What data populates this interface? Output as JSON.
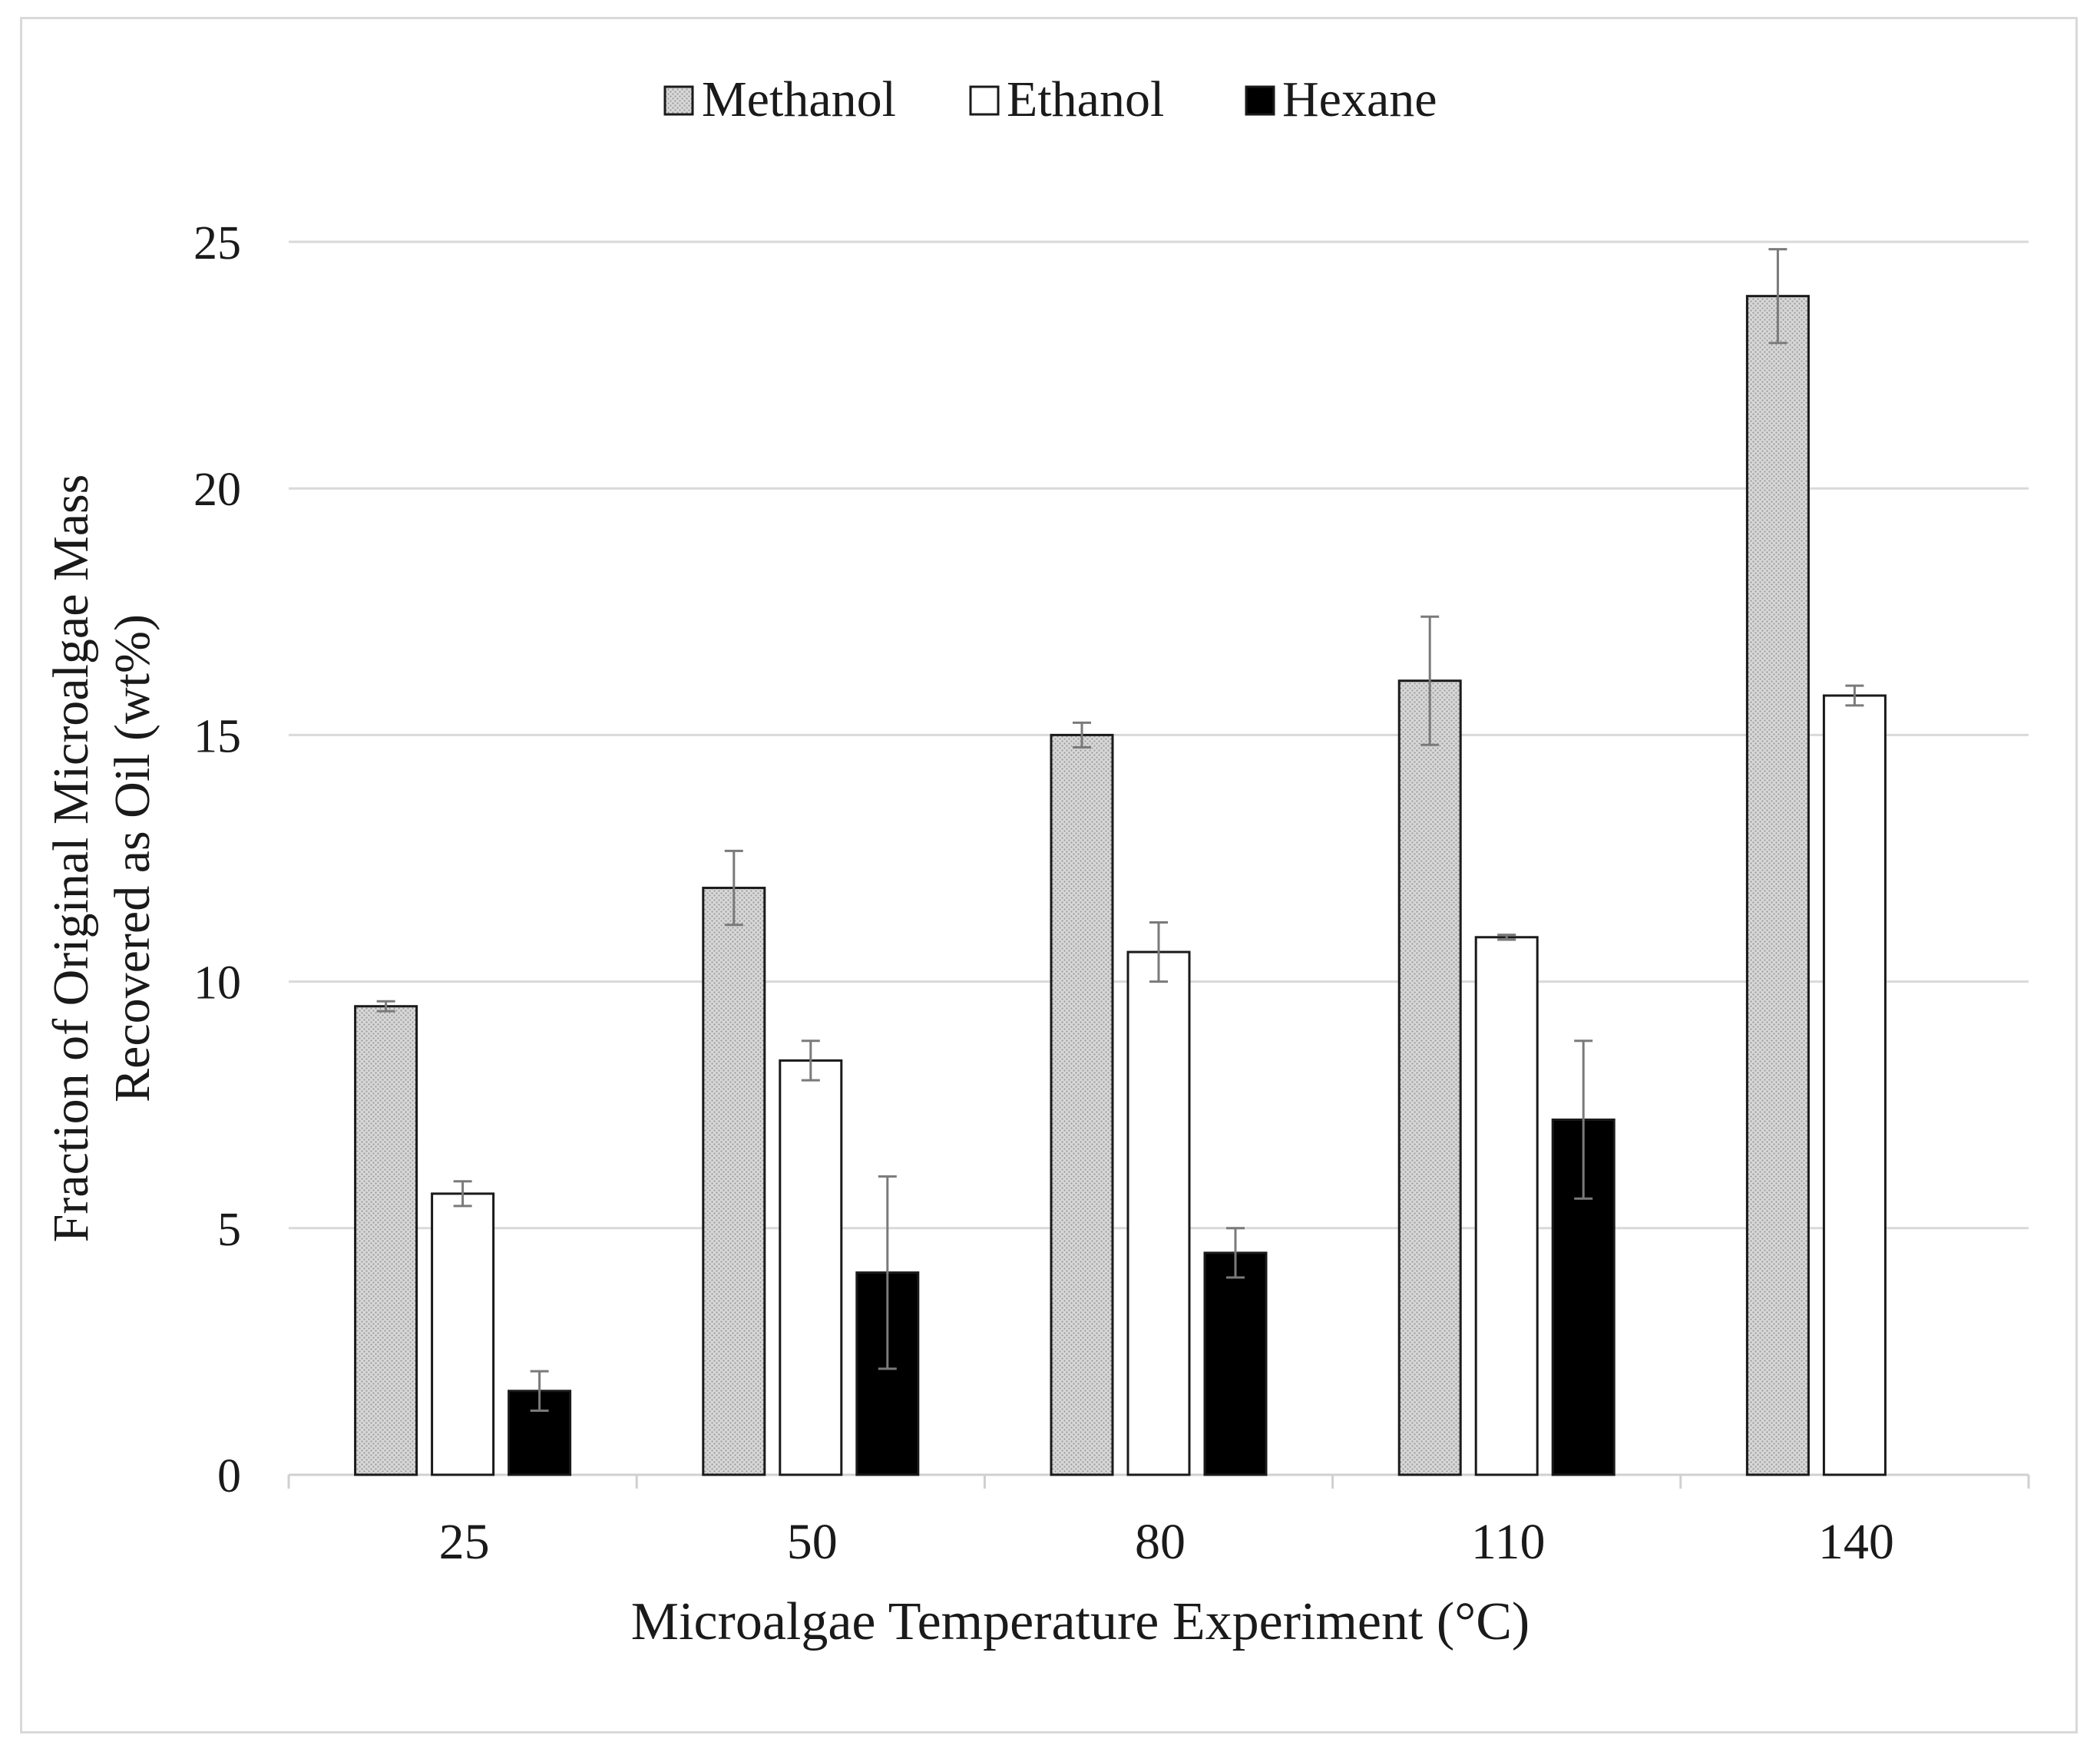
{
  "chart_data": {
    "type": "bar",
    "xlabel": "Microalgae Temperature Experiment (°C)",
    "ylabel_lines": [
      "Fraction of Original Microalgae Mass",
      "Recovered as Oil (wt%)"
    ],
    "categories": [
      "25",
      "50",
      "80",
      "110",
      "140"
    ],
    "ylim": [
      0,
      25
    ],
    "yticks": [
      0,
      5,
      10,
      15,
      20,
      25
    ],
    "grid": true,
    "legend_position": "top-center",
    "series": [
      {
        "name": "Methanol",
        "fill": "#d4d4d4",
        "pattern": "dotted",
        "values": [
          9.5,
          11.9,
          15.0,
          16.1,
          23.9
        ],
        "errors": [
          0.1,
          0.75,
          0.25,
          1.3,
          0.95
        ]
      },
      {
        "name": "Ethanol",
        "fill": "#ffffff",
        "pattern": "none",
        "values": [
          5.7,
          8.4,
          10.6,
          10.9,
          15.8
        ],
        "errors": [
          0.25,
          0.4,
          0.6,
          0.05,
          0.2
        ]
      },
      {
        "name": "Hexane",
        "fill": "#000000",
        "pattern": "none",
        "values": [
          1.7,
          4.1,
          4.5,
          7.2,
          0
        ],
        "errors": [
          0.4,
          1.95,
          0.5,
          1.6,
          0
        ]
      }
    ]
  }
}
